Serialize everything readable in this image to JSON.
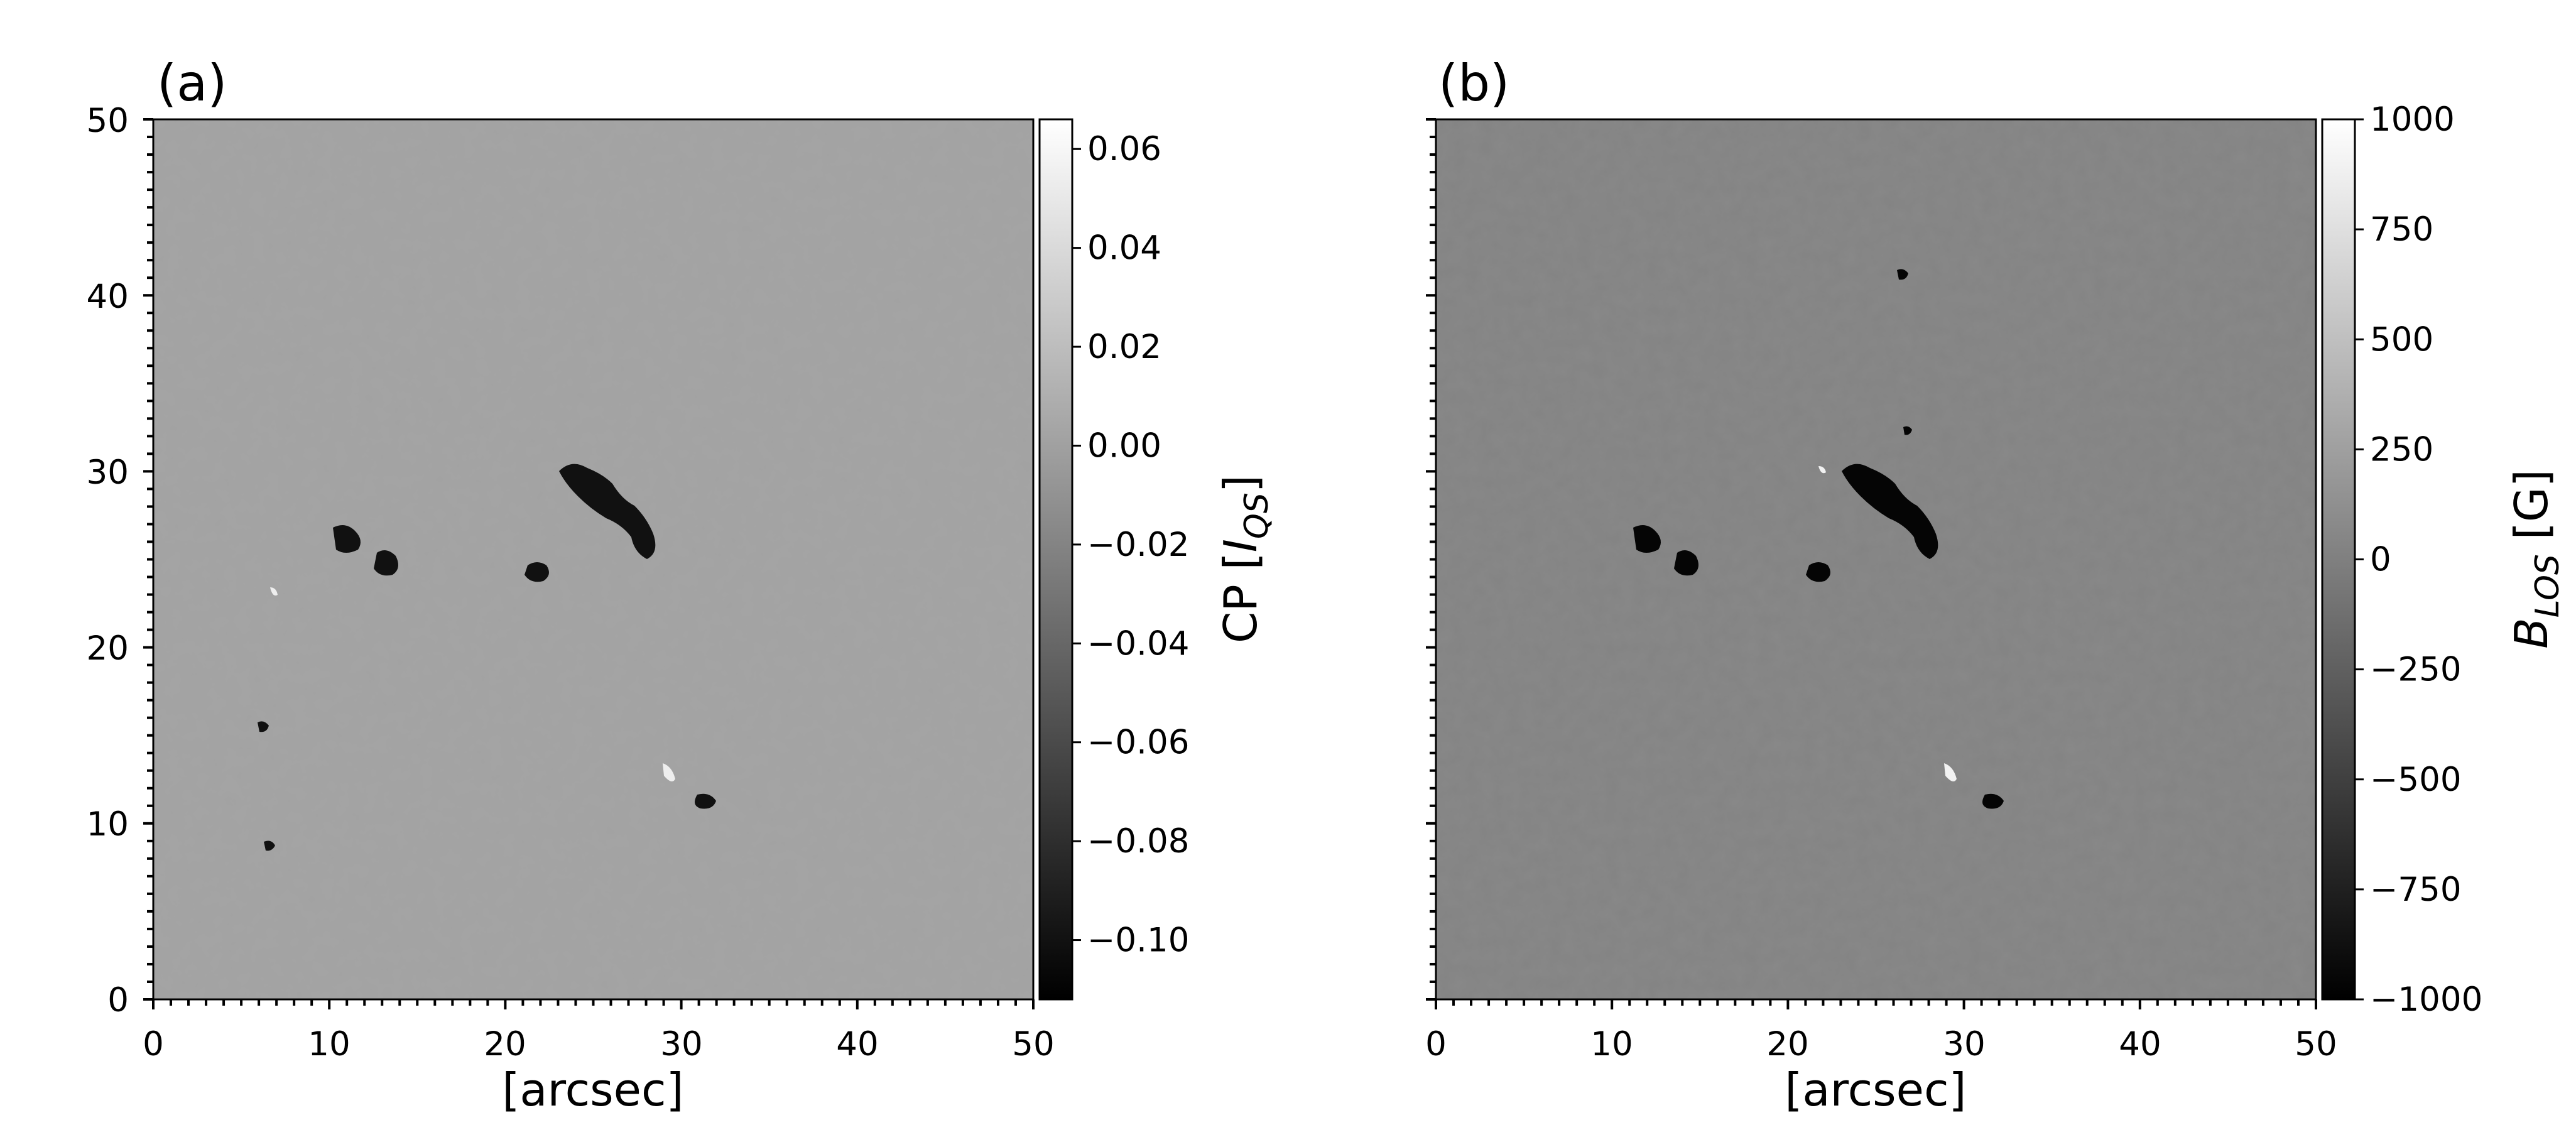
{
  "figure": {
    "panels": [
      {
        "label": "(a)",
        "xlabel": "[arcsec]",
        "x_ticks": [
          "0",
          "10",
          "20",
          "30",
          "40",
          "50"
        ],
        "y_ticks": [
          "0",
          "10",
          "20",
          "30",
          "40",
          "50"
        ],
        "xlim": [
          0,
          50
        ],
        "ylim": [
          0,
          50
        ],
        "background_gray": "#a2a2a2",
        "colorbar": {
          "label_main": "CP [",
          "label_italic": "I",
          "label_sub": "QS",
          "label_close": "]",
          "range": [
            -0.112,
            0.066
          ],
          "ticks": [
            "0.06",
            "0.04",
            "0.02",
            "0.00",
            "−0.02",
            "−0.04",
            "−0.06",
            "−0.08",
            "−0.10"
          ],
          "tick_values": [
            0.06,
            0.04,
            0.02,
            0.0,
            -0.02,
            -0.04,
            -0.06,
            -0.08,
            -0.1
          ],
          "colormap": "gray"
        }
      },
      {
        "label": "(b)",
        "xlabel": "[arcsec]",
        "x_ticks": [
          "0",
          "10",
          "20",
          "30",
          "40",
          "50"
        ],
        "xlim": [
          0,
          50
        ],
        "ylim": [
          0,
          50
        ],
        "background_gray": "#838383",
        "colorbar": {
          "label_italic": "B",
          "label_sub": "LOS",
          "label_units": " [G]",
          "range": [
            -1000,
            1000
          ],
          "ticks": [
            "1000",
            "750",
            "500",
            "250",
            "0",
            "−250",
            "−500",
            "−750",
            "−1000"
          ],
          "tick_values": [
            1000,
            750,
            500,
            250,
            0,
            -250,
            -500,
            -750,
            -1000
          ],
          "colormap": "gray"
        }
      }
    ]
  }
}
